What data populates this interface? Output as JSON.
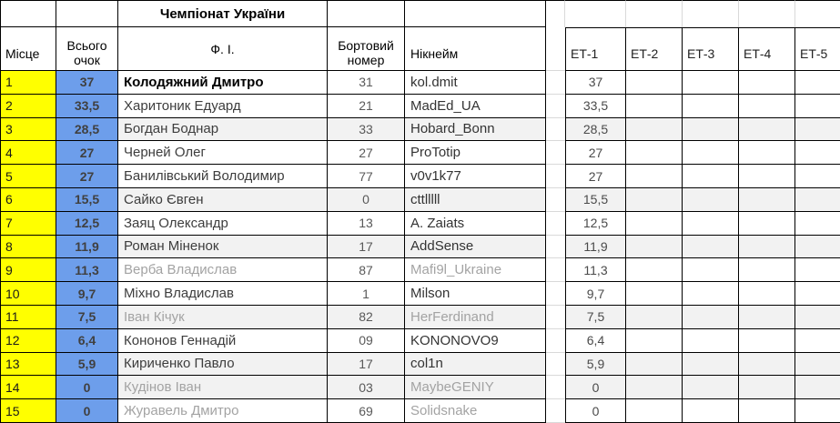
{
  "title": "Чемпіонат України",
  "headers": {
    "place": "Місце",
    "points": "Всього очок",
    "name": "Ф. І.",
    "board": "Бортовий номер",
    "nickname": "Нікнейм"
  },
  "stages": [
    "ЕТ-1",
    "ЕТ-2",
    "ЕТ-3",
    "ЕТ-4",
    "ЕТ-5"
  ],
  "colors": {
    "place_bg": "#ffff00",
    "points_bg": "#6d9eeb",
    "stripe_bg": "#f2f2f2",
    "muted_text": "#a3a3a3"
  },
  "rows": [
    {
      "place": "1",
      "points": "37",
      "name": "Колодяжний Дмитро",
      "board": "31",
      "nickname": "kol.dmit",
      "et1": "37",
      "striped": false,
      "muted": false,
      "bold": true
    },
    {
      "place": "2",
      "points": "33,5",
      "name": "Харитоник Едуард",
      "board": "21",
      "nickname": "MadEd_UA",
      "et1": "33,5",
      "striped": false,
      "muted": false,
      "bold": false
    },
    {
      "place": "3",
      "points": "28,5",
      "name": "Богдан Боднар",
      "board": "33",
      "nickname": "Hobard_Bonn",
      "et1": "28,5",
      "striped": true,
      "muted": false,
      "bold": false
    },
    {
      "place": "4",
      "points": "27",
      "name": "Черней Олег",
      "board": "27",
      "nickname": "ProTotip",
      "et1": "27",
      "striped": false,
      "muted": false,
      "bold": false
    },
    {
      "place": "5",
      "points": "27",
      "name": "Банилівський Володимир",
      "board": "77",
      "nickname": "v0v1k77",
      "et1": "27",
      "striped": false,
      "muted": false,
      "bold": false
    },
    {
      "place": "6",
      "points": "15,5",
      "name": "Сайко Євген",
      "board": "0",
      "nickname": "cttlllll",
      "et1": "15,5",
      "striped": true,
      "muted": false,
      "bold": false
    },
    {
      "place": "7",
      "points": "12,5",
      "name": "Заяц Олександр",
      "board": "13",
      "nickname": "A. Zaiats",
      "et1": "12,5",
      "striped": false,
      "muted": false,
      "bold": false
    },
    {
      "place": "8",
      "points": "11,9",
      "name": "Роман Міненок",
      "board": "17",
      "nickname": "AddSense",
      "et1": "11,9",
      "striped": true,
      "muted": false,
      "bold": false
    },
    {
      "place": "9",
      "points": "11,3",
      "name": "Верба Владислав",
      "board": "87",
      "nickname": "Mafi9l_Ukraine",
      "et1": "11,3",
      "striped": false,
      "muted": true,
      "bold": false
    },
    {
      "place": "10",
      "points": "9,7",
      "name": "Міхно Владислав",
      "board": "1",
      "nickname": "Milson",
      "et1": "9,7",
      "striped": false,
      "muted": false,
      "bold": false
    },
    {
      "place": "11",
      "points": "7,5",
      "name": "Іван Кічук",
      "board": "82",
      "nickname": "HerFerdinand",
      "et1": "7,5",
      "striped": true,
      "muted": true,
      "bold": false
    },
    {
      "place": "12",
      "points": "6,4",
      "name": "Кононов Геннадій",
      "board": "09",
      "nickname": "KONONOVO9",
      "et1": "6,4",
      "striped": false,
      "muted": false,
      "bold": false
    },
    {
      "place": "13",
      "points": "5,9",
      "name": "Кириченко Павло",
      "board": "17",
      "nickname": "col1n",
      "et1": "5,9",
      "striped": true,
      "muted": false,
      "bold": false
    },
    {
      "place": "14",
      "points": "0",
      "name": "Кудінов Іван",
      "board": "03",
      "nickname": "MaybeGENIY",
      "et1": "0",
      "striped": true,
      "muted": true,
      "bold": false
    },
    {
      "place": "15",
      "points": "0",
      "name": "Журавель Дмитро",
      "board": "69",
      "nickname": "Solidsnake",
      "et1": "0",
      "striped": false,
      "muted": true,
      "bold": false
    }
  ]
}
